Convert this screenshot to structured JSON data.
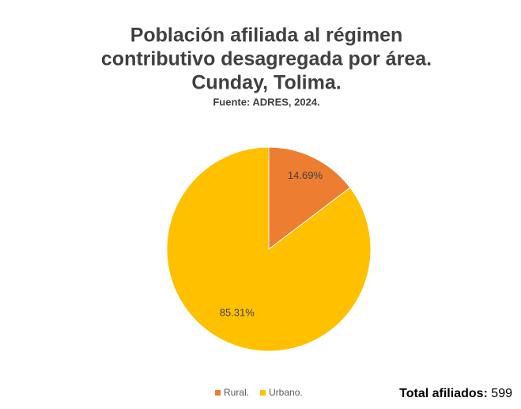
{
  "chart_data": {
    "type": "pie",
    "title_lines": [
      "Población afiliada al régimen",
      "contributivo desagregada por área.",
      "Cunday, Tolima."
    ],
    "subtitle": "Fuente: ADRES, 2024.",
    "categories": [
      "Rural.",
      "Urbano."
    ],
    "values": [
      14.69,
      85.31
    ],
    "value_labels": [
      "14.69%",
      "85.31%"
    ],
    "colors": [
      "#ed7d31",
      "#ffc000"
    ],
    "legend": "bottom",
    "annotation": {
      "label": "Total afiliados:",
      "value": 599
    }
  }
}
